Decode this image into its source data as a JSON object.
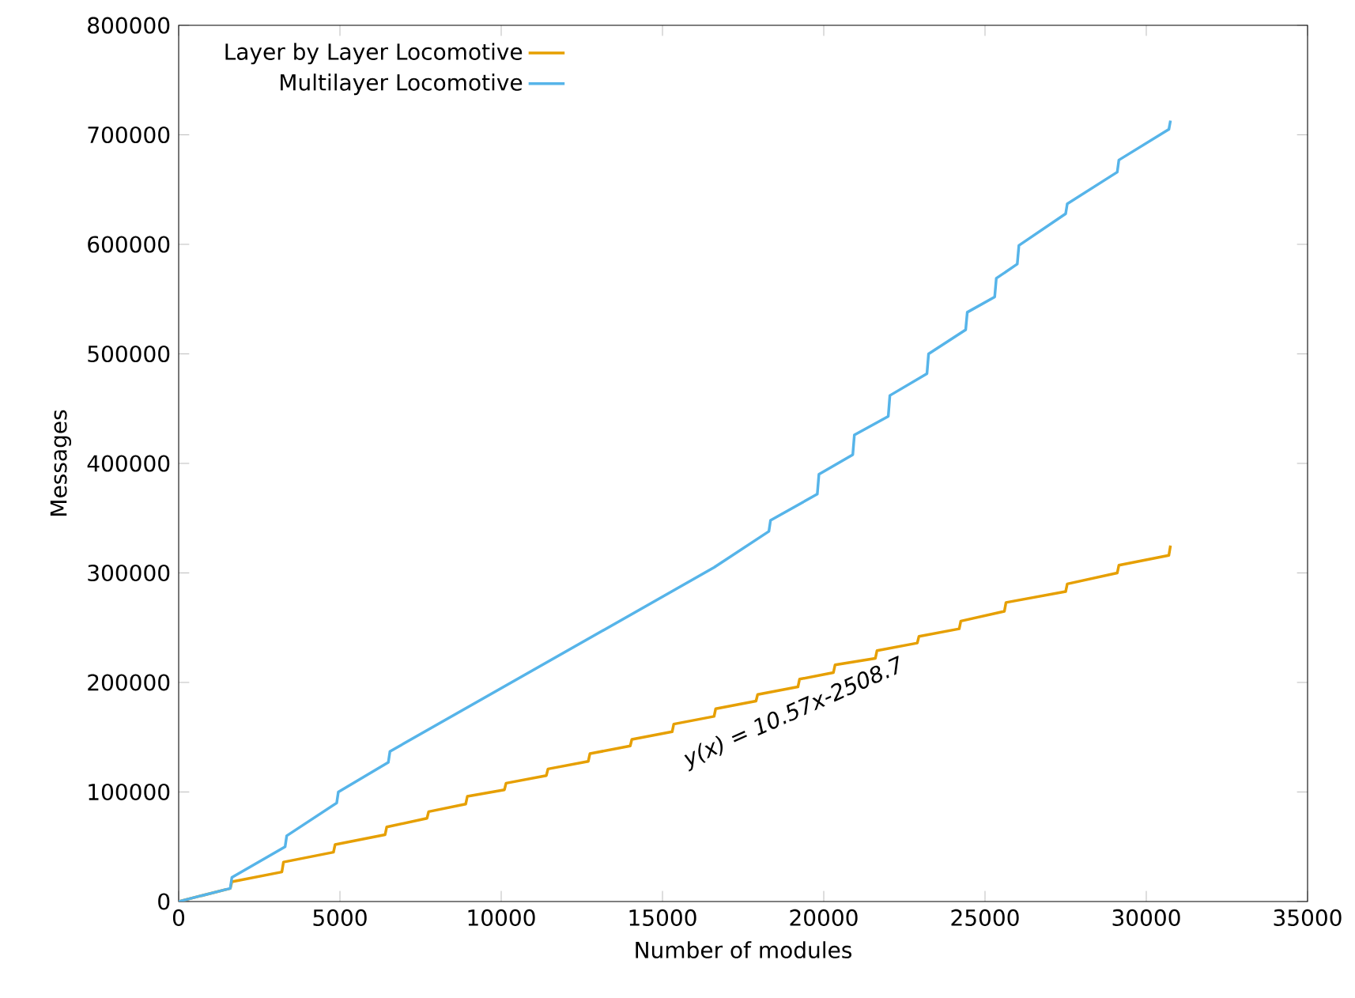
{
  "chart_data": {
    "type": "line",
    "xlabel": "Number of modules",
    "ylabel": "Messages",
    "xlim": [
      0,
      35000
    ],
    "ylim": [
      0,
      800000
    ],
    "xticks": [
      0,
      5000,
      10000,
      15000,
      20000,
      25000,
      30000,
      35000
    ],
    "yticks": [
      0,
      100000,
      200000,
      300000,
      400000,
      500000,
      600000,
      700000,
      800000
    ],
    "grid": false,
    "legend": "top left",
    "marker": "none",
    "line_style": "solid",
    "annotations": [
      "y(x) = 10.57x-2508.7"
    ],
    "series": [
      {
        "name": "Layer by Layer Locomotive",
        "color": "#e69f00",
        "x": [
          0,
          1600,
          1650,
          3200,
          3250,
          4800,
          4850,
          6400,
          6450,
          7700,
          7750,
          8900,
          8950,
          10100,
          10150,
          11400,
          11450,
          12700,
          12750,
          14000,
          14050,
          15300,
          15350,
          16600,
          16650,
          17900,
          17950,
          19200,
          19250,
          20300,
          20350,
          21600,
          21650,
          22900,
          22950,
          24200,
          24250,
          25600,
          25650,
          27500,
          27550,
          29100,
          29150,
          30700,
          30750
        ],
        "values": [
          0,
          12000,
          18000,
          27000,
          36000,
          45000,
          52000,
          61000,
          68000,
          76000,
          82000,
          89000,
          96000,
          102000,
          108000,
          115000,
          121000,
          128000,
          135000,
          142000,
          148000,
          155000,
          162000,
          169000,
          176000,
          183000,
          189000,
          196000,
          203000,
          209000,
          216000,
          222000,
          229000,
          236000,
          242000,
          249000,
          256000,
          265000,
          273000,
          283000,
          290000,
          300000,
          307000,
          316000,
          325000
        ]
      },
      {
        "name": "Multilayer Locomotive",
        "color": "#56b4e9",
        "x": [
          0,
          1600,
          1650,
          3300,
          3350,
          4900,
          4950,
          6500,
          6550,
          16600,
          18300,
          18350,
          19800,
          19850,
          20900,
          20950,
          22000,
          22050,
          23200,
          23250,
          24400,
          24450,
          25300,
          25350,
          26000,
          26050,
          27500,
          27550,
          29100,
          29150,
          30700,
          30750
        ],
        "values": [
          0,
          12000,
          22000,
          50000,
          60000,
          90000,
          100000,
          127000,
          137000,
          305000,
          338000,
          348000,
          372000,
          390000,
          408000,
          426000,
          443000,
          462000,
          482000,
          500000,
          522000,
          538000,
          552000,
          569000,
          582000,
          599000,
          628000,
          637000,
          666000,
          677000,
          705000,
          713000
        ]
      }
    ]
  }
}
